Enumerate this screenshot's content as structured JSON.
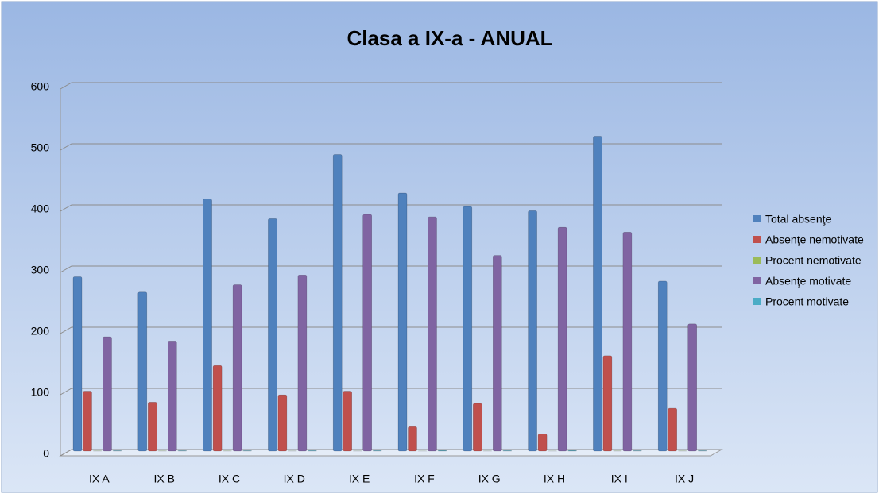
{
  "chart_data": {
    "type": "bar",
    "title": "Clasa a IX-a - ANUAL",
    "categories": [
      "IX A",
      "IX B",
      "IX C",
      "IX D",
      "IX E",
      "IX F",
      "IX G",
      "IX H",
      "IX I",
      "IX J"
    ],
    "series": [
      {
        "name": "Total absenţe",
        "color": "#4f81bd",
        "values": [
          285,
          260,
          412,
          380,
          485,
          422,
          400,
          393,
          515,
          278
        ]
      },
      {
        "name": "Absenţe nemotivate",
        "color": "#c0504d",
        "values": [
          98,
          80,
          140,
          92,
          98,
          40,
          78,
          28,
          156,
          70
        ]
      },
      {
        "name": "Procent nemotivate",
        "color": "#9bbb59",
        "values": [
          0.3,
          0.3,
          0.3,
          0.2,
          0.2,
          0.1,
          0.2,
          0.1,
          0.3,
          0.3
        ]
      },
      {
        "name": "Absenţe motivate",
        "color": "#8064a2",
        "values": [
          187,
          180,
          272,
          288,
          387,
          383,
          320,
          366,
          358,
          208
        ]
      },
      {
        "name": "Procent motivate",
        "color": "#4bacc6",
        "values": [
          0.7,
          0.7,
          0.7,
          0.8,
          0.8,
          0.9,
          0.8,
          0.9,
          0.7,
          0.7
        ]
      }
    ],
    "ylim": [
      0,
      600
    ],
    "yticks": [
      0,
      100,
      200,
      300,
      400,
      500,
      600
    ],
    "grid": true,
    "legend": "right"
  }
}
